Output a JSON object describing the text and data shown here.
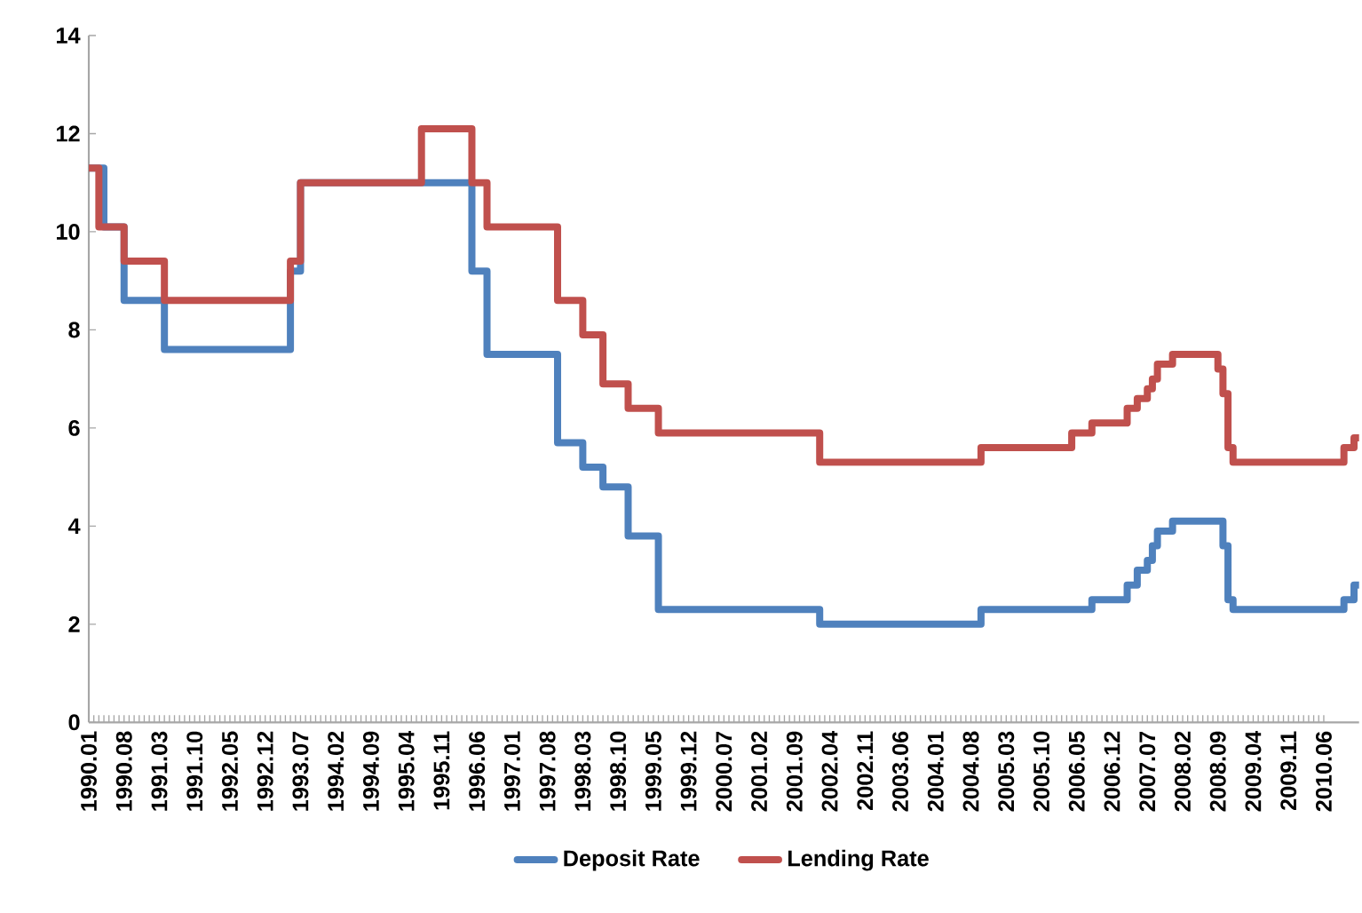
{
  "chart_data": {
    "type": "step",
    "series": [
      {
        "name": "Deposit Rate",
        "color": "#4f81bd",
        "x": [
          "1990-01",
          "1990-04",
          "1990-08",
          "1991-04",
          "1993-05",
          "1993-07",
          "1996-05",
          "1996-08",
          "1997-10",
          "1998-03",
          "1998-07",
          "1998-12",
          "1999-06",
          "2002-02",
          "2004-10",
          "2006-08",
          "2007-03",
          "2007-05",
          "2007-07",
          "2007-08",
          "2007-09",
          "2007-12",
          "2008-10",
          "2008-11",
          "2008-12",
          "2010-10",
          "2010-12",
          "2011-01"
        ],
        "values": [
          11.3,
          10.1,
          8.6,
          7.6,
          9.2,
          11.0,
          9.2,
          7.5,
          5.7,
          5.2,
          4.8,
          3.8,
          2.3,
          2.0,
          2.3,
          2.5,
          2.8,
          3.1,
          3.3,
          3.6,
          3.9,
          4.1,
          3.6,
          2.5,
          2.3,
          2.5,
          2.8,
          2.8
        ]
      },
      {
        "name": "Lending Rate",
        "color": "#c0504d",
        "x": [
          "1990-01",
          "1990-03",
          "1990-08",
          "1991-04",
          "1993-05",
          "1993-07",
          "1995-07",
          "1996-05",
          "1996-08",
          "1997-10",
          "1998-03",
          "1998-07",
          "1998-12",
          "1999-06",
          "2002-02",
          "2004-10",
          "2006-04",
          "2006-08",
          "2007-03",
          "2007-05",
          "2007-07",
          "2007-08",
          "2007-09",
          "2007-12",
          "2008-09",
          "2008-10",
          "2008-11",
          "2008-12",
          "2010-10",
          "2010-12",
          "2011-01"
        ],
        "values": [
          11.3,
          10.1,
          9.4,
          8.6,
          9.4,
          11.0,
          12.1,
          11.0,
          10.1,
          8.6,
          7.9,
          6.9,
          6.4,
          5.9,
          5.3,
          5.6,
          5.9,
          6.1,
          6.4,
          6.6,
          6.8,
          7.0,
          7.3,
          7.5,
          7.2,
          6.7,
          5.6,
          5.3,
          5.6,
          5.8,
          5.8
        ]
      }
    ],
    "xlim": [
      "1990-01",
      "2011-01"
    ],
    "xticks": [
      {
        "value": "1990-01",
        "label": "1990.01"
      },
      {
        "value": "1990-08",
        "label": "1990.08"
      },
      {
        "value": "1991-03",
        "label": "1991.03"
      },
      {
        "value": "1991-10",
        "label": "1991.10"
      },
      {
        "value": "1992-05",
        "label": "1992.05"
      },
      {
        "value": "1992-12",
        "label": "1992.12"
      },
      {
        "value": "1993-07",
        "label": "1993.07"
      },
      {
        "value": "1994-02",
        "label": "1994.02"
      },
      {
        "value": "1994-09",
        "label": "1994.09"
      },
      {
        "value": "1995-04",
        "label": "1995.04"
      },
      {
        "value": "1995-11",
        "label": "1995.11"
      },
      {
        "value": "1996-06",
        "label": "1996.06"
      },
      {
        "value": "1997-01",
        "label": "1997.01"
      },
      {
        "value": "1997-08",
        "label": "1997.08"
      },
      {
        "value": "1998-03",
        "label": "1998.03"
      },
      {
        "value": "1998-10",
        "label": "1998.10"
      },
      {
        "value": "1999-05",
        "label": "1999.05"
      },
      {
        "value": "1999-12",
        "label": "1999.12"
      },
      {
        "value": "2000-07",
        "label": "2000.07"
      },
      {
        "value": "2001-02",
        "label": "2001.02"
      },
      {
        "value": "2001-09",
        "label": "2001.09"
      },
      {
        "value": "2002-04",
        "label": "2002.04"
      },
      {
        "value": "2002-11",
        "label": "2002.11"
      },
      {
        "value": "2003-06",
        "label": "2003.06"
      },
      {
        "value": "2004-01",
        "label": "2004.01"
      },
      {
        "value": "2004-08",
        "label": "2004.08"
      },
      {
        "value": "2005-03",
        "label": "2005.03"
      },
      {
        "value": "2005-10",
        "label": "2005.10"
      },
      {
        "value": "2006-05",
        "label": "2006.05"
      },
      {
        "value": "2006-12",
        "label": "2006.12"
      },
      {
        "value": "2007-07",
        "label": "2007.07"
      },
      {
        "value": "2008-02",
        "label": "2008.02"
      },
      {
        "value": "2008-09",
        "label": "2008.09"
      },
      {
        "value": "2009-04",
        "label": "2009.04"
      },
      {
        "value": "2009-11",
        "label": "2009.11"
      },
      {
        "value": "2010-06",
        "label": "2010.06"
      }
    ],
    "ylim": [
      0,
      14
    ],
    "yticks": [
      0,
      2,
      4,
      6,
      8,
      10,
      12,
      14
    ],
    "legend": "bottom",
    "grid": false,
    "marker": "none",
    "line_style": "solid"
  }
}
